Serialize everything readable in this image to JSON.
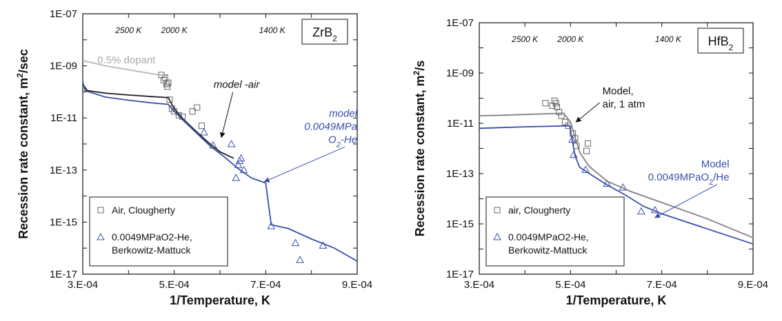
{
  "chart_data": [
    {
      "type": "scatter",
      "title": "",
      "xlabel": "1/Temperature, K",
      "ylabel": "Recession rate constant, m²/sec",
      "ylabel_main": "Recession rate constant, m",
      "ylabel_sup": "2",
      "ylabel_tail": "/sec",
      "xlim": [
        0.0003,
        0.0009
      ],
      "ylim_log10": [
        -17,
        -7
      ],
      "x_scale": "linear",
      "y_scale": "log",
      "x_ticks": [
        0.0003,
        0.0005,
        0.0007,
        0.0009
      ],
      "x_tick_labels": [
        "3.E-04",
        "5.E-04",
        "7.E-04",
        "9.E-04"
      ],
      "y_ticks_log10": [
        -7,
        -9,
        -11,
        -13,
        -15,
        -17
      ],
      "y_tick_labels": [
        "1E-07",
        "1E-09",
        "1E-11",
        "1E-13",
        "1E-15",
        "1E-17"
      ],
      "material_main": "ZrB",
      "material_sub": "2",
      "material_position": "top-right",
      "temperature_scale": [
        {
          "label": "2500 K",
          "x": 0.0004
        },
        {
          "label": "2000 K",
          "x": 0.0005
        },
        {
          "label": "1400 K",
          "x": 0.000714
        }
      ],
      "legend_position": "bottom-left",
      "legend": [
        {
          "marker": "square",
          "color": "#666666",
          "lines": [
            "Air, Clougherty"
          ]
        },
        {
          "marker": "triangle",
          "color": "#3a4fa8",
          "lines": [
            "0.0049MPaO2-He,",
            "Berkowitz-Mattuck"
          ]
        }
      ],
      "series": [
        {
          "name": "Air, Clougherty",
          "kind": "points",
          "marker": "square",
          "color": "#666666",
          "points": [
            [
              0.000472,
              -9.35
            ],
            [
              0.000477,
              -9.55
            ],
            [
              0.00048,
              -9.45
            ],
            [
              0.000483,
              -9.7
            ],
            [
              0.000485,
              -9.8
            ],
            [
              0.000487,
              -9.65
            ],
            [
              0.00049,
              -10.3
            ],
            [
              0.000495,
              -10.65
            ],
            [
              0.0005,
              -10.75
            ],
            [
              0.00051,
              -10.9
            ],
            [
              0.000518,
              -10.95
            ],
            [
              0.00054,
              -10.75
            ],
            [
              0.00055,
              -10.6
            ],
            [
              0.00056,
              -11.3
            ]
          ]
        },
        {
          "name": "0.0049MPaO2-He, Berkowitz-Mattuck",
          "kind": "points",
          "marker": "triangle",
          "color": "#3a4fa8",
          "points": [
            [
              0.000565,
              -11.55
            ],
            [
              0.000585,
              -12.05
            ],
            [
              0.000625,
              -12.0
            ],
            [
              0.000635,
              -13.3
            ],
            [
              0.00064,
              -12.8
            ],
            [
              0.000643,
              -12.65
            ],
            [
              0.000646,
              -12.55
            ],
            [
              0.000652,
              -13.0
            ],
            [
              0.000712,
              -15.15
            ],
            [
              0.000765,
              -15.8
            ],
            [
              0.000775,
              -16.45
            ],
            [
              0.000825,
              -15.9
            ]
          ]
        },
        {
          "name": "",
          "kind": "line",
          "color": "#b4b4b4",
          "points": [
            [
              0.0003,
              -8.8
            ],
            [
              0.00035,
              -9.0
            ],
            [
              0.0004,
              -9.15
            ],
            [
              0.00045,
              -9.3
            ],
            [
              0.000487,
              -9.4
            ]
          ]
        },
        {
          "name": "",
          "kind": "line",
          "color": "#222222",
          "points": [
            [
              0.0003,
              -9.7
            ],
            [
              0.00031,
              -9.95
            ],
            [
              0.00035,
              -10.05
            ],
            [
              0.0004,
              -10.12
            ],
            [
              0.00045,
              -10.18
            ],
            [
              0.000487,
              -10.22
            ],
            [
              0.0005,
              -10.65
            ],
            [
              0.00052,
              -11.05
            ],
            [
              0.00055,
              -11.55
            ],
            [
              0.000575,
              -11.95
            ],
            [
              0.0006,
              -12.3
            ],
            [
              0.00063,
              -12.55
            ]
          ]
        },
        {
          "name": "",
          "kind": "line",
          "color": "#3a4fa8",
          "points": [
            [
              0.0003,
              -9.6
            ],
            [
              0.000305,
              -9.95
            ],
            [
              0.00035,
              -10.2
            ],
            [
              0.0004,
              -10.32
            ],
            [
              0.00045,
              -10.42
            ],
            [
              0.000487,
              -10.48
            ],
            [
              0.0005,
              -10.75
            ],
            [
              0.00052,
              -11.1
            ],
            [
              0.00055,
              -11.6
            ],
            [
              0.00058,
              -12.1
            ],
            [
              0.00061,
              -12.5
            ],
            [
              0.00064,
              -12.95
            ],
            [
              0.000668,
              -13.3
            ],
            [
              0.0007,
              -13.5
            ],
            [
              0.000712,
              -15.1
            ],
            [
              0.00075,
              -15.25
            ],
            [
              0.0008,
              -15.65
            ],
            [
              0.00085,
              -16.0
            ],
            [
              0.0009,
              -16.5
            ]
          ]
        }
      ],
      "annotations": [
        {
          "lines": [
            "0.5% dopant"
          ],
          "color": "#aaaaaa",
          "italic": false,
          "anchor": "start",
          "x": 0.000332,
          "y": -8.9
        },
        {
          "lines": [
            "model -air"
          ],
          "color": "#111111",
          "italic": true,
          "anchor": "start",
          "x": 0.000586,
          "y": -9.85,
          "arrow_to": [
            0.000603,
            -11.75
          ]
        },
        {
          "lines": [
            "model",
            "0.0049MPa",
            "O2-He"
          ],
          "sub_last": "2",
          "color": "#3a4fa8",
          "italic": true,
          "anchor": "end",
          "x": 0.0009,
          "y": -10.95,
          "arrow_to": [
            0.000697,
            -13.45
          ]
        }
      ]
    },
    {
      "type": "scatter",
      "title": "",
      "xlabel": "1/Temperature, K",
      "ylabel": "Recession rate constant, m²/s",
      "ylabel_main": "Recession rate constant, m",
      "ylabel_sup": "2",
      "ylabel_tail": "/s",
      "xlim": [
        0.0003,
        0.0009
      ],
      "ylim_log10": [
        -17,
        -7
      ],
      "x_scale": "linear",
      "y_scale": "log",
      "x_ticks": [
        0.0003,
        0.0005,
        0.0007,
        0.0009
      ],
      "x_tick_labels": [
        "3.E-04",
        "5.E-04",
        "7.E-04",
        "9.E-04"
      ],
      "y_ticks_log10": [
        -7,
        -9,
        -11,
        -13,
        -15,
        -17
      ],
      "y_tick_labels": [
        "1E-07",
        "1E-09",
        "1E-11",
        "1E-13",
        "1E-15",
        "1E-17"
      ],
      "material_main": "HfB",
      "material_sub": "2",
      "material_position": "top-right",
      "temperature_scale": [
        {
          "label": "2500 K",
          "x": 0.0004
        },
        {
          "label": "2000 K",
          "x": 0.0005
        },
        {
          "label": "1400 K",
          "x": 0.000714
        }
      ],
      "legend_position": "bottom-left",
      "legend": [
        {
          "marker": "square",
          "color": "#666666",
          "lines": [
            "air, Clougherty"
          ]
        },
        {
          "marker": "triangle",
          "color": "#3a4fa8",
          "lines": [
            "0.0049MPaO2-He,",
            "Berkowitz-Mattuck"
          ]
        }
      ],
      "series": [
        {
          "name": "air, Clougherty",
          "kind": "points",
          "marker": "square",
          "color": "#666666",
          "points": [
            [
              0.000445,
              -10.2
            ],
            [
              0.00046,
              -10.3
            ],
            [
              0.000465,
              -10.1
            ],
            [
              0.000468,
              -10.2
            ],
            [
              0.00047,
              -10.35
            ],
            [
              0.000475,
              -10.55
            ],
            [
              0.00048,
              -10.7
            ],
            [
              0.000488,
              -10.95
            ],
            [
              0.000495,
              -11.1
            ],
            [
              0.000505,
              -11.4
            ],
            [
              0.00051,
              -11.6
            ],
            [
              0.000513,
              -11.9
            ],
            [
              0.000535,
              -12.1
            ],
            [
              0.000538,
              -11.8
            ]
          ]
        },
        {
          "name": "0.0049MPaO2-He, Berkowitz-Mattuck",
          "kind": "points",
          "marker": "triangle",
          "color": "#3a4fa8",
          "points": [
            [
              0.000504,
              -11.65
            ],
            [
              0.000507,
              -12.25
            ],
            [
              0.000533,
              -12.85
            ],
            [
              0.00058,
              -13.4
            ],
            [
              0.000615,
              -13.55
            ],
            [
              0.000655,
              -14.5
            ],
            [
              0.000685,
              -14.45
            ]
          ]
        },
        {
          "name": "",
          "kind": "line",
          "color": "#808080",
          "points": [
            [
              0.0003,
              -10.7
            ],
            [
              0.00035,
              -10.68
            ],
            [
              0.0004,
              -10.65
            ],
            [
              0.00045,
              -10.62
            ],
            [
              0.000485,
              -10.6
            ],
            [
              0.0005,
              -10.95
            ],
            [
              0.00051,
              -11.55
            ],
            [
              0.00052,
              -12.15
            ],
            [
              0.00054,
              -12.7
            ],
            [
              0.00058,
              -13.3
            ],
            [
              0.00063,
              -13.7
            ],
            [
              0.0007,
              -14.15
            ],
            [
              0.0008,
              -14.8
            ],
            [
              0.0009,
              -15.55
            ]
          ]
        },
        {
          "name": "",
          "kind": "line",
          "color": "#3a4fa8",
          "points": [
            [
              0.0003,
              -11.2
            ],
            [
              0.00035,
              -11.17
            ],
            [
              0.0004,
              -11.14
            ],
            [
              0.00045,
              -11.12
            ],
            [
              0.000498,
              -11.1
            ],
            [
              0.000502,
              -11.5
            ],
            [
              0.00051,
              -12.3
            ],
            [
              0.00052,
              -12.75
            ],
            [
              0.00055,
              -13.1
            ],
            [
              0.00058,
              -13.45
            ],
            [
              0.00062,
              -13.85
            ],
            [
              0.00066,
              -14.3
            ],
            [
              0.0007,
              -14.6
            ],
            [
              0.0008,
              -15.2
            ],
            [
              0.0009,
              -15.8
            ]
          ]
        }
      ],
      "annotations": [
        {
          "lines": [
            "Model,",
            "air, 1 atm"
          ],
          "color": "#111111",
          "italic": false,
          "anchor": "start",
          "x": 0.00057,
          "y": -9.85,
          "arrow_to": [
            0.000512,
            -10.95
          ]
        },
        {
          "lines": [
            "Model",
            "0.0049MPaO2/He"
          ],
          "sub_last": "2",
          "color": "#3a4fa8",
          "italic": false,
          "anchor": "end",
          "x": 0.000848,
          "y": -12.75,
          "arrow_to": [
            0.000685,
            -14.75
          ]
        }
      ]
    }
  ]
}
